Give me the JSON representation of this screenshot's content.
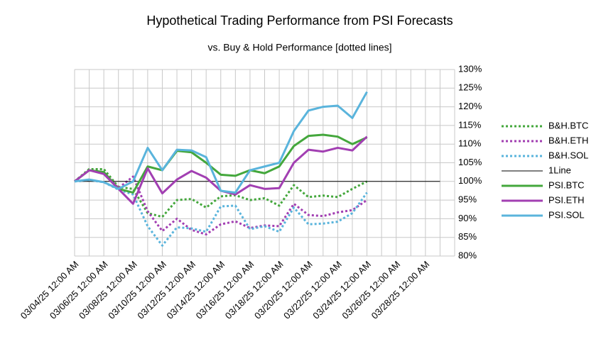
{
  "chart_data": {
    "type": "line",
    "title": "Hypothetical Trading Performance from PSI Forecasts",
    "subtitle": "vs. Buy & Hold Performance [dotted lines]",
    "categories": [
      "03/04/25 12:00 AM",
      null,
      "03/06/25 12:00 AM",
      null,
      "03/08/25 12:00 AM",
      null,
      "03/10/25 12:00 AM",
      null,
      "03/12/25 12:00 AM",
      null,
      "03/14/25 12:00 AM",
      null,
      "03/16/25 12:00 AM",
      null,
      "03/18/25 12:00 AM",
      null,
      "03/20/25 12:00 AM",
      null,
      "03/22/25 12:00 AM",
      null,
      "03/24/25 12:00 AM",
      null,
      "03/26/25 12:00 AM",
      null,
      "03/28/25 12:00 AM",
      null
    ],
    "ylim": [
      80,
      130
    ],
    "yticks": [
      {
        "value": 80,
        "label": "80%"
      },
      {
        "value": 85,
        "label": "85%"
      },
      {
        "value": 90,
        "label": "90%"
      },
      {
        "value": 95,
        "label": "95%"
      },
      {
        "value": 100,
        "label": "100%"
      },
      {
        "value": 105,
        "label": "105%"
      },
      {
        "value": 110,
        "label": "110%"
      },
      {
        "value": 115,
        "label": "115%"
      },
      {
        "value": 120,
        "label": "120%"
      },
      {
        "value": 125,
        "label": "125%"
      },
      {
        "value": 130,
        "label": "130%"
      }
    ],
    "grid": true,
    "legend": "right",
    "series": [
      {
        "name": "B&H.BTC",
        "color": "#44a73c",
        "dashed": true,
        "values": [
          100,
          103.3,
          103.3,
          98.5,
          98,
          91.5,
          90.5,
          95,
          95.3,
          93,
          96,
          96.3,
          95,
          95.5,
          93.5,
          99,
          95.8,
          96.2,
          95.8,
          98,
          100,
          null,
          null,
          null,
          null,
          null
        ]
      },
      {
        "name": "B&H.ETH",
        "color": "#a23fb2",
        "dashed": true,
        "values": [
          100,
          103,
          102.5,
          98.2,
          101.3,
          92,
          86.7,
          90,
          87,
          85.8,
          88.5,
          89.3,
          87.5,
          88.2,
          88,
          94,
          91,
          90.7,
          91.7,
          92.3,
          95,
          null,
          null,
          null,
          null,
          null
        ]
      },
      {
        "name": "B&H.SOL",
        "color": "#5ab4dc",
        "dashed": true,
        "values": [
          100,
          100.3,
          99.8,
          97.8,
          96.5,
          88,
          82.8,
          87.7,
          87.4,
          86.5,
          93.3,
          93.5,
          87.2,
          88,
          86.5,
          93,
          88.5,
          88.7,
          89.2,
          91.5,
          97,
          null,
          null,
          null,
          null,
          null
        ]
      },
      {
        "name": "1Line",
        "color": "#000000",
        "thin": true,
        "values": [
          100,
          100,
          100,
          100,
          100,
          100,
          100,
          100,
          100,
          100,
          100,
          100,
          100,
          100,
          100,
          100,
          100,
          100,
          100,
          100,
          100,
          100,
          100,
          100,
          100,
          100
        ]
      },
      {
        "name": "PSI.BTC",
        "color": "#44a73c",
        "values": [
          100,
          103,
          102.5,
          98,
          97,
          104,
          103,
          108.2,
          107.8,
          105,
          101.8,
          101.5,
          103,
          102.2,
          104,
          109.5,
          112.2,
          112.5,
          112,
          110,
          111.8,
          null,
          null,
          null,
          null,
          null
        ]
      },
      {
        "name": "PSI.ETH",
        "color": "#a23fb2",
        "values": [
          100,
          103,
          102,
          98,
          94,
          103.5,
          96.8,
          100.5,
          102.8,
          101,
          97.5,
          96.5,
          99,
          98,
          98.2,
          105,
          108.5,
          108,
          109,
          108.3,
          112,
          null,
          null,
          null,
          null,
          null
        ]
      },
      {
        "name": "PSI.SOL",
        "color": "#5ab4dc",
        "values": [
          100,
          100.5,
          99.8,
          98,
          100,
          109,
          103,
          108.5,
          108.3,
          106.5,
          97.5,
          97,
          103,
          104,
          105,
          113.5,
          119,
          120,
          120.3,
          117,
          124,
          null,
          null,
          null,
          null,
          null
        ]
      }
    ]
  }
}
